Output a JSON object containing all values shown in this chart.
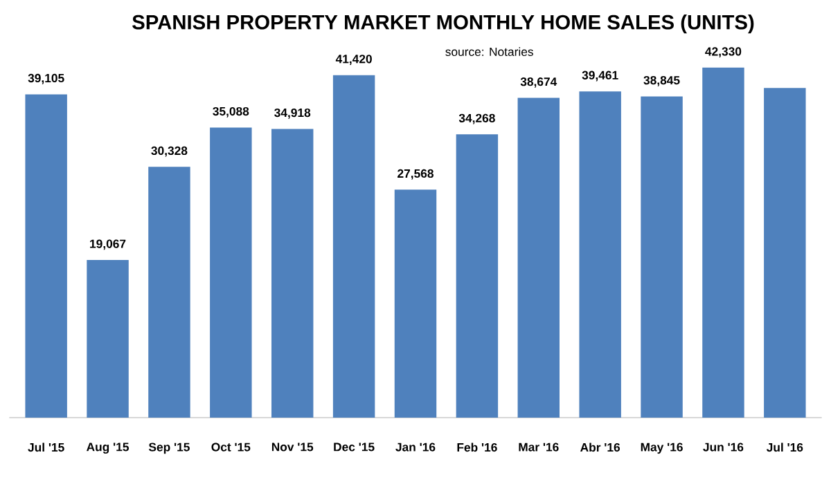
{
  "chart_data": {
    "type": "bar",
    "title": "SPANISH PROPERTY MARKET MONTHLY HOME SALES (UNITS)",
    "subtitle": "source: Notaries",
    "categories": [
      "Jul '15",
      "Aug '15",
      "Sep '15",
      "Oct '15",
      "Nov '15",
      "Dec '15",
      "Jan '16",
      "Feb '16",
      "Mar '16",
      "Abr '16",
      "May '16",
      "Jun '16",
      "Jul '16"
    ],
    "values": [
      39105,
      19067,
      30328,
      35088,
      34918,
      41420,
      27568,
      34268,
      38674,
      39461,
      38845,
      42330,
      39880
    ],
    "value_labels": [
      "39,105",
      "19,067",
      "30,328",
      "35,088",
      "34,918",
      "41,420",
      "27,568",
      "34,268",
      "38,674",
      "39,461",
      "38,845",
      "42,330",
      null
    ],
    "color": "#4f81bd"
  }
}
